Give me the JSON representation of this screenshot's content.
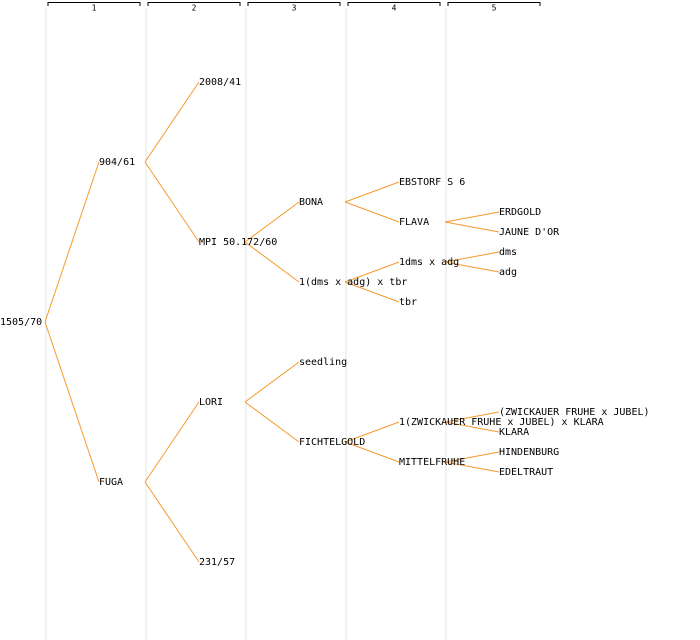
{
  "columns": [
    "1",
    "2",
    "3",
    "4",
    "5"
  ],
  "tree": {
    "label": "1505/70",
    "children": [
      {
        "label": "904/61",
        "children": [
          {
            "label": "2008/41",
            "children": []
          },
          {
            "label": "MPI 50.172/60",
            "children": [
              {
                "label": "BONA",
                "children": [
                  {
                    "label": "EBSTORF S 6",
                    "children": []
                  },
                  {
                    "label": "FLAVA",
                    "children": [
                      {
                        "label": "ERDGOLD",
                        "children": []
                      },
                      {
                        "label": "JAUNE D'OR",
                        "children": []
                      }
                    ]
                  }
                ]
              },
              {
                "label": "1(dms x adg) x tbr",
                "children": [
                  {
                    "label": "1dms x adg",
                    "children": [
                      {
                        "label": "dms",
                        "children": []
                      },
                      {
                        "label": "adg",
                        "children": []
                      }
                    ]
                  },
                  {
                    "label": "tbr",
                    "children": []
                  }
                ]
              }
            ]
          }
        ]
      },
      {
        "label": "FUGA",
        "children": [
          {
            "label": "LORI",
            "children": [
              {
                "label": "seedling",
                "children": []
              },
              {
                "label": "FICHTELGOLD",
                "children": [
                  {
                    "label": "1(ZWICKAUER FRUHE x JUBEL) x KLARA",
                    "children": [
                      {
                        "label": "(ZWICKAUER FRUHE x JUBEL)",
                        "children": []
                      },
                      {
                        "label": "KLARA",
                        "children": []
                      }
                    ]
                  },
                  {
                    "label": "MITTELFRUHE",
                    "children": [
                      {
                        "label": "HINDENBURG",
                        "children": []
                      },
                      {
                        "label": "EDELTRAUT",
                        "children": []
                      }
                    ]
                  }
                ]
              }
            ]
          },
          {
            "label": "231/57",
            "children": []
          }
        ]
      }
    ]
  }
}
